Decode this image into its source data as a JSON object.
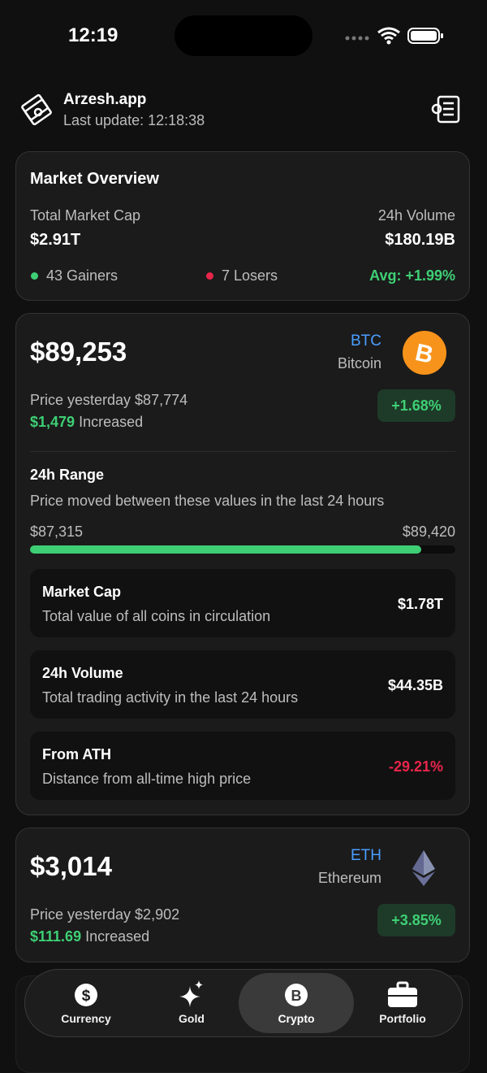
{
  "status_bar": {
    "time": "12:19"
  },
  "header": {
    "app_name": "Arzesh.app",
    "last_update": "Last update: 12:18:38"
  },
  "market_overview": {
    "title": "Market Overview",
    "total_market_cap_label": "Total Market Cap",
    "total_market_cap": "$2.91T",
    "volume_label": "24h Volume",
    "volume": "$180.19B",
    "gainers": "43 Gainers",
    "losers": "7 Losers",
    "average": "Avg: +1.99%"
  },
  "coins": [
    {
      "price": "$89,253",
      "symbol": "BTC",
      "name": "Bitcoin",
      "yesterday": "Price yesterday $87,774",
      "change_amount": "$1,479",
      "change_word": "Increased",
      "change_percent": "+1.68%",
      "range": {
        "title": "24h Range",
        "description": "Price moved between these values in the last 24 hours",
        "low": "$87,315",
        "high": "$89,420",
        "position": 92
      },
      "stats": [
        {
          "title": "Market Cap",
          "description": "Total value of all coins in circulation",
          "value": "$1.78T"
        },
        {
          "title": "24h Volume",
          "description": "Total trading activity in the last 24 hours",
          "value": "$44.35B"
        },
        {
          "title": "From ATH",
          "description": "Distance from all-time high price",
          "value": "-29.21%"
        }
      ]
    },
    {
      "price": "$3,014",
      "symbol": "ETH",
      "name": "Ethereum",
      "yesterday": "Price yesterday $2,902",
      "change_amount": "$111.69",
      "change_word": "Increased",
      "change_percent": "+3.85%"
    }
  ],
  "nav": {
    "items": [
      "Currency",
      "Gold",
      "Crypto",
      "Portfolio"
    ],
    "active": 2
  }
}
